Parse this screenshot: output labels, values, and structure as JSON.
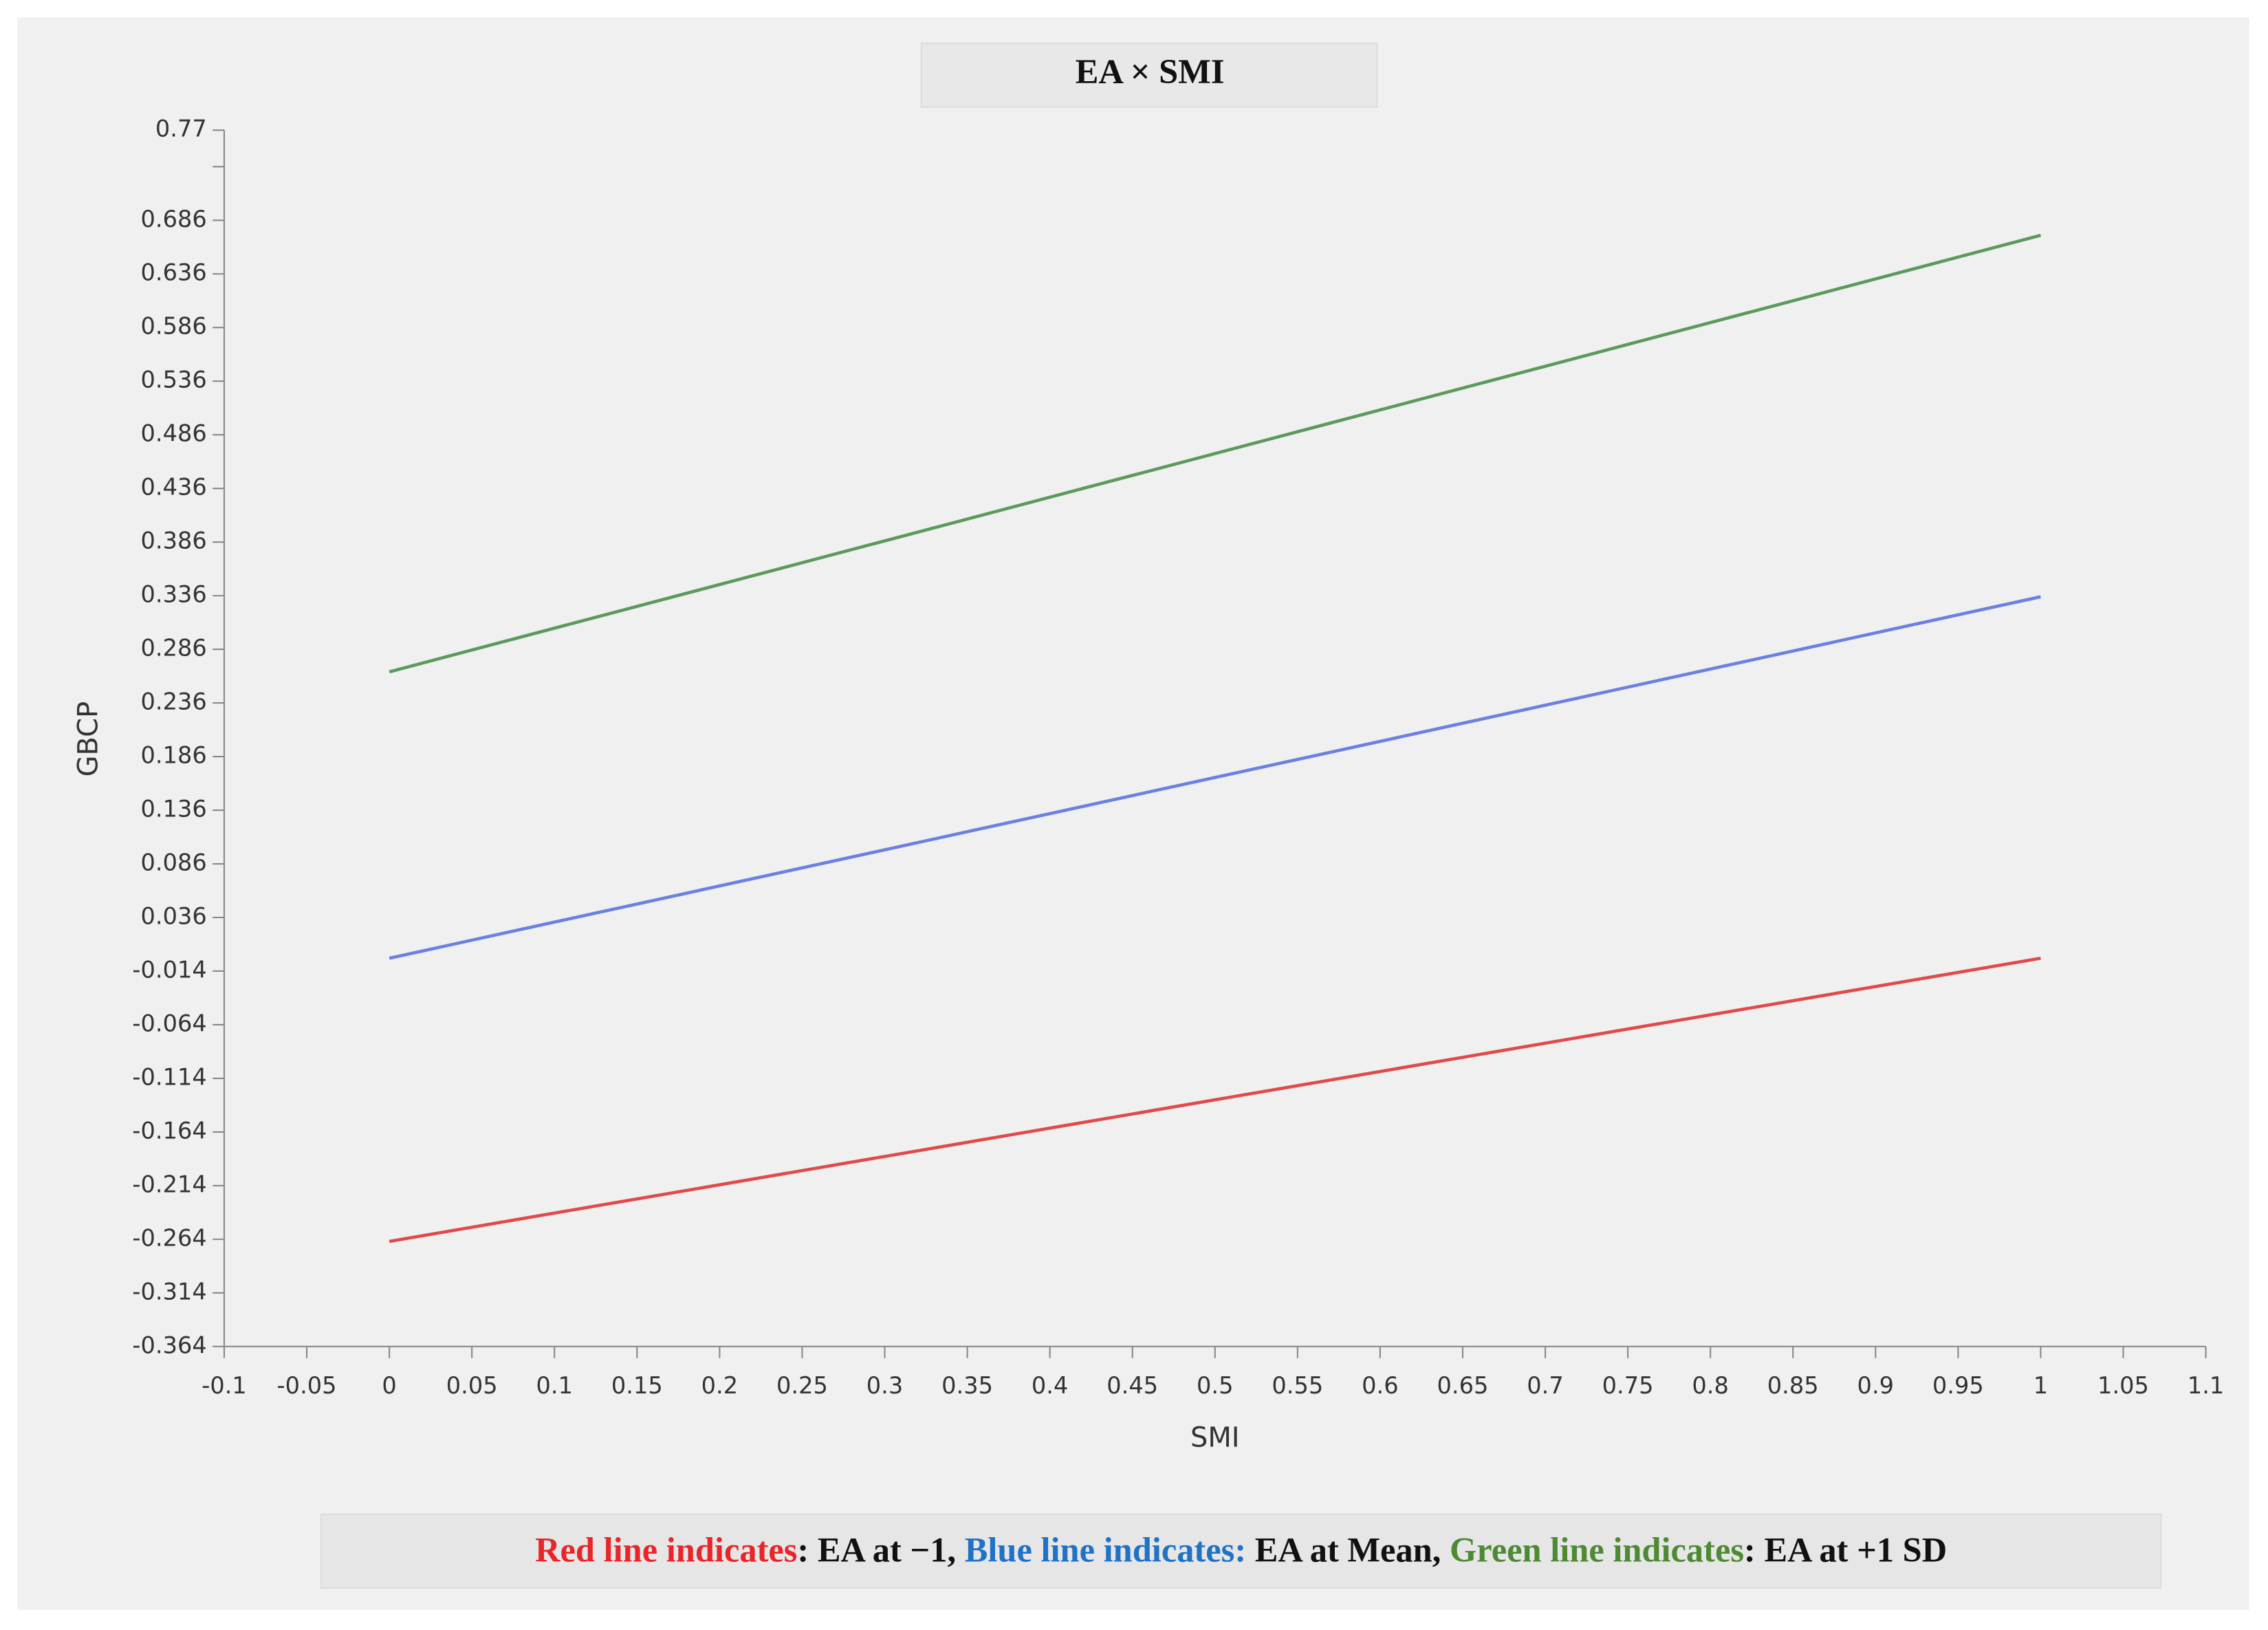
{
  "chart_data": {
    "type": "line",
    "title": "EA × SMI",
    "x_label": "SMI",
    "y_label": "GBCP",
    "x": [
      0,
      1
    ],
    "series": [
      {
        "color": "#e04a4a",
        "values": [
          -0.266,
          -0.002
        ]
      },
      {
        "color": "#6b80e0",
        "values": [
          -0.002,
          0.335
        ]
      },
      {
        "color": "#5c9a5c",
        "values": [
          0.265,
          0.672
        ]
      }
    ],
    "xlim": [
      -0.1,
      1.1
    ],
    "xticks": [
      -0.1,
      -0.05,
      0,
      0.05,
      0.1,
      0.15,
      0.2,
      0.25,
      0.3,
      0.35,
      0.4,
      0.45,
      0.5,
      0.55,
      0.6,
      0.65,
      0.7,
      0.75,
      0.8,
      0.85,
      0.9,
      0.95,
      1,
      1.05,
      1.1
    ],
    "ylim": [
      -0.364,
      0.77
    ],
    "yticks": [
      -0.364,
      -0.314,
      -0.264,
      -0.214,
      -0.164,
      -0.114,
      -0.064,
      -0.014,
      0.036,
      0.086,
      0.136,
      0.186,
      0.236,
      0.286,
      0.336,
      0.386,
      0.436,
      0.486,
      0.536,
      0.586,
      0.636,
      0.686,
      {
        "value": 0.736,
        "label": null
      },
      0.77
    ],
    "grid": false,
    "note": [
      {
        "text": "Red line indicates",
        "color": "#e8262a"
      },
      {
        "text": ": EA at −1, ",
        "color": "#111111"
      },
      {
        "text": "Blue line indicates:",
        "color": "#1f72c6"
      },
      {
        "text": " EA at Mean, ",
        "color": "#111111"
      },
      {
        "text": "Green line indicates",
        "color": "#4e8a34"
      },
      {
        "text": ": EA at +1 SD",
        "color": "#111111"
      }
    ]
  }
}
